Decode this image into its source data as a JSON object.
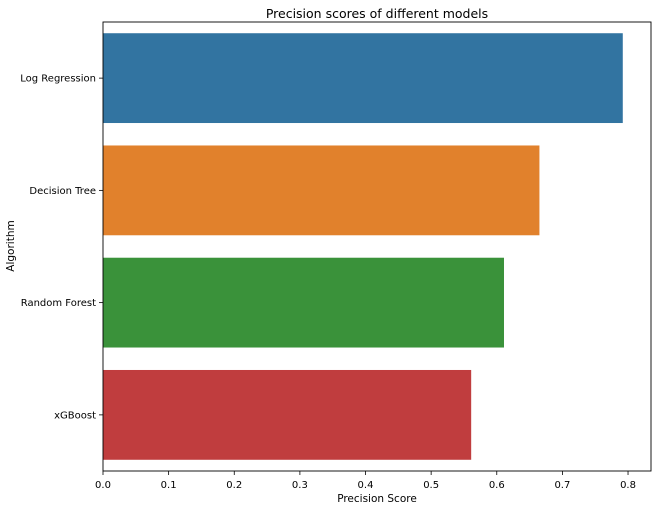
{
  "chart_data": {
    "type": "bar",
    "orientation": "horizontal",
    "title": "Precision scores of different models",
    "xlabel": "Precision Score",
    "ylabel": "Algorithm",
    "categories": [
      "Log Regression",
      "Decision Tree",
      "Random Forest",
      "xGBoost"
    ],
    "values": [
      0.792,
      0.665,
      0.611,
      0.561
    ],
    "colors": [
      "#3274a1",
      "#e1812c",
      "#3a923a",
      "#c03d3e"
    ],
    "xlim": [
      0,
      0.835
    ],
    "xticks": [
      "0.0",
      "0.1",
      "0.2",
      "0.3",
      "0.4",
      "0.5",
      "0.6",
      "0.7",
      "0.8"
    ],
    "grid": false,
    "legend": "none"
  }
}
